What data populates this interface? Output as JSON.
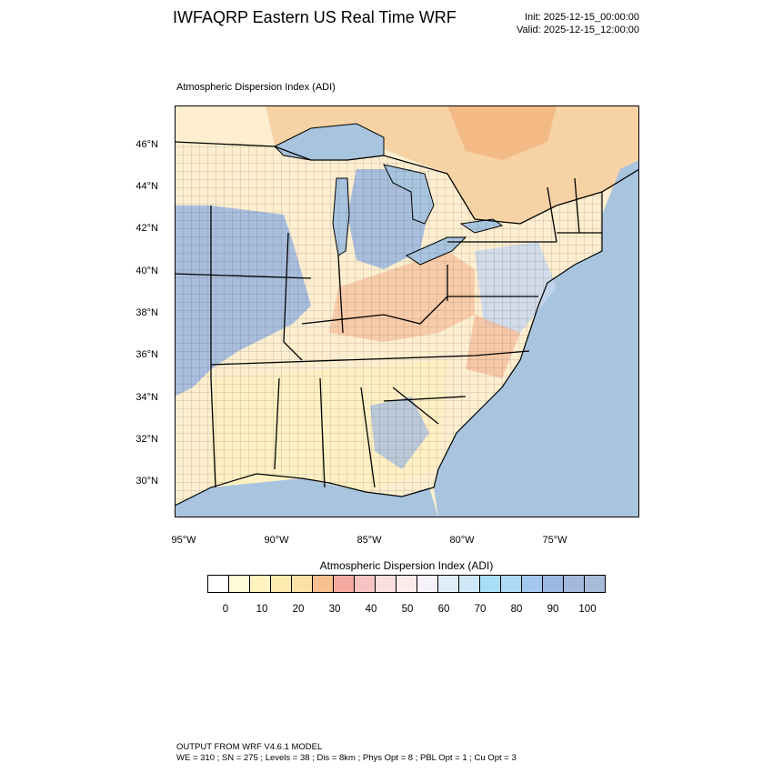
{
  "header": {
    "title": "IWFAQRP Eastern US Real Time WRF",
    "init": "Init: 2025-12-15_00:00:00",
    "valid": "Valid: 2025-12-15_12:00:00"
  },
  "map": {
    "subtitle": "Atmospheric Dispersion Index   (ADI)",
    "lat_labels": [
      "46°N",
      "44°N",
      "42°N",
      "40°N",
      "38°N",
      "36°N",
      "34°N",
      "32°N",
      "30°N"
    ],
    "lon_labels": [
      "95°W",
      "90°W",
      "85°W",
      "80°W",
      "75°W"
    ],
    "colors": {
      "water": "#a8c4de",
      "land_low": "#fff2c0",
      "land_mid": "#f7c79a",
      "land_high": "#a8c0e0",
      "canada": "#f4d6a8",
      "border": "#000000"
    }
  },
  "colorbar": {
    "title": "Atmospheric Dispersion Index  (ADI)",
    "labels": [
      "0",
      "10",
      "20",
      "30",
      "40",
      "50",
      "60",
      "70",
      "80",
      "90",
      "100"
    ],
    "colors": [
      "#ffffff",
      "#fffbd8",
      "#fff3c0",
      "#ffeab0",
      "#fde0a6",
      "#f9c08f",
      "#f4a9a0",
      "#f7c3c3",
      "#fbdede",
      "#fdeaea",
      "#f6f2fb",
      "#e0ecfa",
      "#cfe8f8",
      "#a9def6",
      "#b0daf3",
      "#a3c8f0",
      "#9cb7e4",
      "#a3b8dc",
      "#a8bcd8"
    ]
  },
  "footer": {
    "line1": "OUTPUT FROM WRF V4.6.1 MODEL",
    "line2": "WE = 310 ; SN = 275 ; Levels = 38 ; Dis = 8km ; Phys Opt = 8 ; PBL Opt = 1 ; Cu Opt = 3"
  }
}
